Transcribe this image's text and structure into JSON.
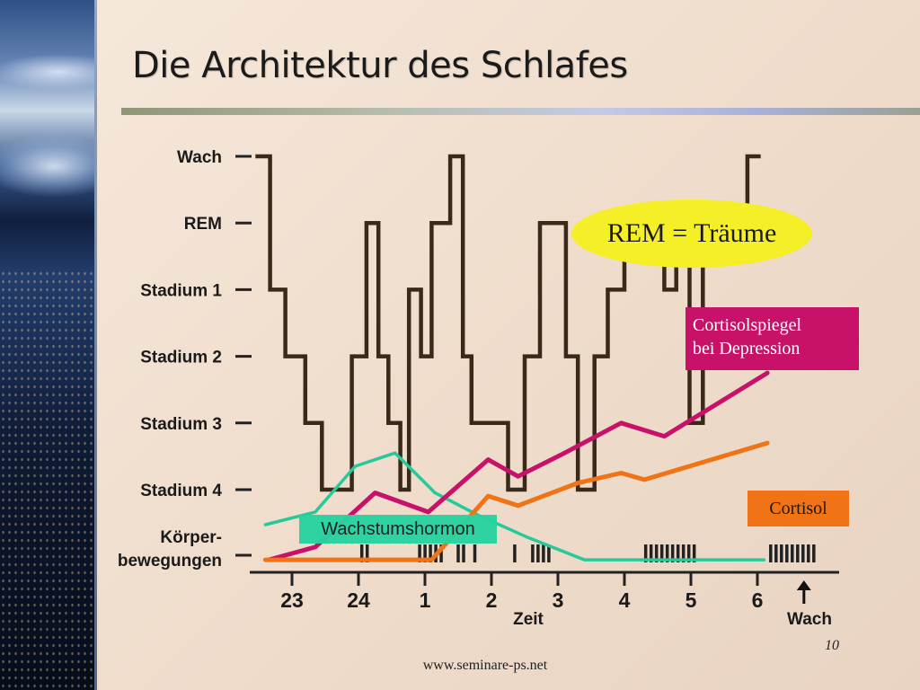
{
  "slide": {
    "title": "Die Architektur des Schlafes",
    "page_number": "10",
    "footer_url": "www.seminare-ps.net"
  },
  "colors": {
    "hypnogram": "#3a2818",
    "cortisol_depression": "#c8126a",
    "cortisol": "#f07316",
    "growth_hormone": "#27c99a",
    "rem_callout": "#f5ef28"
  },
  "callouts": {
    "rem": "REM = Träume",
    "cortisol_depression_line1": "Cortisolspiegel",
    "cortisol_depression_line2": "bei Depression",
    "cortisol": "Cortisol",
    "growth_hormone": "Wachstumshormon"
  },
  "chart_data": {
    "type": "line",
    "xlabel": "Zeit",
    "wake_label": "Wach",
    "xticks": [
      {
        "label": "23",
        "hour": 0
      },
      {
        "label": "24",
        "hour": 1
      },
      {
        "label": "1",
        "hour": 2
      },
      {
        "label": "2",
        "hour": 3
      },
      {
        "label": "3",
        "hour": 4
      },
      {
        "label": "4",
        "hour": 5
      },
      {
        "label": "5",
        "hour": 6
      },
      {
        "label": "6",
        "hour": 7
      }
    ],
    "xlim": [
      -0.45,
      8.1
    ],
    "ylevels": [
      {
        "label": "Wach",
        "level": 0
      },
      {
        "label": "REM",
        "level": 1
      },
      {
        "label": "Stadium 1",
        "level": 2
      },
      {
        "label": "Stadium 2",
        "level": 3
      },
      {
        "label": "Stadium 3",
        "level": 4
      },
      {
        "label": "Stadium 4",
        "level": 5
      }
    ],
    "movement_label_line1": "Körper-",
    "movement_label_line2": "bewegungen",
    "hypnogram": [
      [
        -0.55,
        0
      ],
      [
        -0.33,
        0
      ],
      [
        -0.33,
        2
      ],
      [
        -0.1,
        2
      ],
      [
        -0.1,
        3
      ],
      [
        0.2,
        3
      ],
      [
        0.2,
        4
      ],
      [
        0.45,
        4
      ],
      [
        0.45,
        5
      ],
      [
        0.9,
        5
      ],
      [
        0.9,
        3
      ],
      [
        1.12,
        3
      ],
      [
        1.12,
        1
      ],
      [
        1.3,
        1
      ],
      [
        1.3,
        3
      ],
      [
        1.45,
        3
      ],
      [
        1.45,
        4
      ],
      [
        1.63,
        4
      ],
      [
        1.63,
        5
      ],
      [
        1.76,
        5
      ],
      [
        1.76,
        2
      ],
      [
        1.94,
        2
      ],
      [
        1.94,
        3
      ],
      [
        2.1,
        3
      ],
      [
        2.1,
        1
      ],
      [
        2.38,
        1
      ],
      [
        2.38,
        0
      ],
      [
        2.57,
        0
      ],
      [
        2.57,
        3
      ],
      [
        2.7,
        3
      ],
      [
        2.7,
        4
      ],
      [
        3.25,
        4
      ],
      [
        3.25,
        5
      ],
      [
        3.5,
        5
      ],
      [
        3.5,
        3
      ],
      [
        3.73,
        3
      ],
      [
        3.73,
        1
      ],
      [
        4.12,
        1
      ],
      [
        4.12,
        3
      ],
      [
        4.3,
        3
      ],
      [
        4.3,
        5
      ],
      [
        4.55,
        5
      ],
      [
        4.55,
        3
      ],
      [
        4.75,
        3
      ],
      [
        4.75,
        2
      ],
      [
        5.0,
        2
      ],
      [
        5.0,
        1
      ],
      [
        5.6,
        1
      ],
      [
        5.6,
        2
      ],
      [
        5.78,
        2
      ],
      [
        5.78,
        1
      ],
      [
        5.98,
        1
      ],
      [
        5.98,
        4
      ],
      [
        6.18,
        4
      ],
      [
        6.18,
        1
      ],
      [
        6.85,
        1
      ],
      [
        6.85,
        0
      ],
      [
        7.05,
        0
      ]
    ],
    "series": [
      {
        "name": "Wachstumshormon",
        "x": [
          -0.4,
          0.35,
          0.95,
          1.55,
          2.15,
          2.8,
          3.55,
          4.4,
          5.1,
          7.1
        ],
        "y": [
          5.55,
          5.35,
          4.65,
          4.45,
          5.05,
          5.4,
          5.75,
          6.1,
          6.1,
          6.1
        ]
      },
      {
        "name": "Cortisolspiegel bei Depression",
        "x": [
          -0.35,
          0.35,
          1.25,
          2.05,
          2.95,
          3.4,
          4.1,
          4.95,
          5.6,
          7.15
        ],
        "y": [
          6.1,
          5.9,
          5.05,
          5.35,
          4.55,
          4.8,
          4.45,
          4.0,
          4.2,
          3.25
        ]
      },
      {
        "name": "Cortisol",
        "x": [
          -0.4,
          0.3,
          1.0,
          2.1,
          2.95,
          3.4,
          4.3,
          4.95,
          5.3,
          7.15
        ],
        "y": [
          6.1,
          6.1,
          6.1,
          6.1,
          5.1,
          5.25,
          4.9,
          4.75,
          4.85,
          4.3
        ]
      }
    ],
    "movements": [
      {
        "hour": 1.05,
        "count": 2
      },
      {
        "hour": 1.92,
        "count": 5
      },
      {
        "hour": 2.5,
        "count": 2
      },
      {
        "hour": 2.75,
        "count": 1
      },
      {
        "hour": 3.35,
        "count": 1
      },
      {
        "hour": 3.62,
        "count": 4
      },
      {
        "hour": 5.32,
        "count": 10
      },
      {
        "hour": 7.2,
        "count": 9
      }
    ],
    "wake_arrow_hour": 7.7,
    "grid": false
  }
}
